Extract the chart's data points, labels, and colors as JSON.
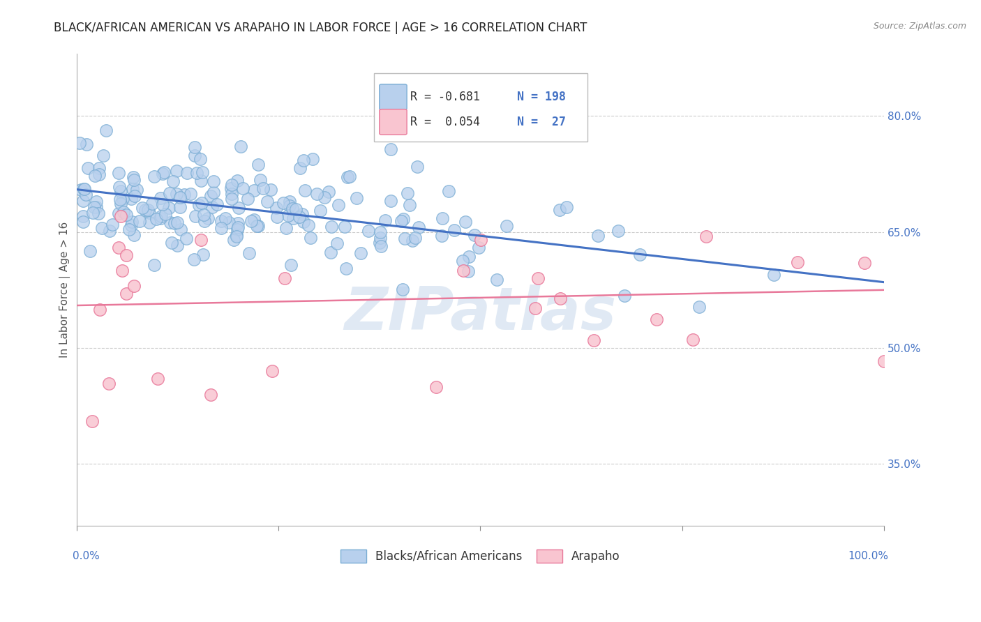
{
  "title": "BLACK/AFRICAN AMERICAN VS ARAPAHO IN LABOR FORCE | AGE > 16 CORRELATION CHART",
  "source": "Source: ZipAtlas.com",
  "ylabel": "In Labor Force | Age > 16",
  "ytick_labels": [
    "35.0%",
    "50.0%",
    "65.0%",
    "80.0%"
  ],
  "ytick_values": [
    0.35,
    0.5,
    0.65,
    0.8
  ],
  "xlim": [
    0.0,
    1.0
  ],
  "ylim": [
    0.27,
    0.88
  ],
  "blue_line_start_y": 0.705,
  "blue_line_end_y": 0.585,
  "pink_line_start_y": 0.555,
  "pink_line_end_y": 0.575,
  "title_fontsize": 12,
  "source_fontsize": 9,
  "axis_label_fontsize": 11,
  "tick_fontsize": 11,
  "legend_fontsize": 12,
  "blue_line_color": "#4472c4",
  "pink_line_color": "#e8789a",
  "blue_scatter_face": "#b8d0ed",
  "blue_scatter_edge": "#7aadd4",
  "pink_scatter_face": "#f9c5d0",
  "pink_scatter_edge": "#e8789a",
  "grid_color": "#cccccc",
  "title_color": "#222222",
  "tick_color": "#4472c4",
  "watermark_color": "#c8d8eb",
  "background_color": "#ffffff",
  "legend_entry_blue_R": "R = -0.681",
  "legend_entry_blue_N": "N = 198",
  "legend_entry_pink_R": "R =  0.054",
  "legend_entry_pink_N": "N =  27",
  "legend_label_blue": "Blacks/African Americans",
  "legend_label_pink": "Arapaho"
}
